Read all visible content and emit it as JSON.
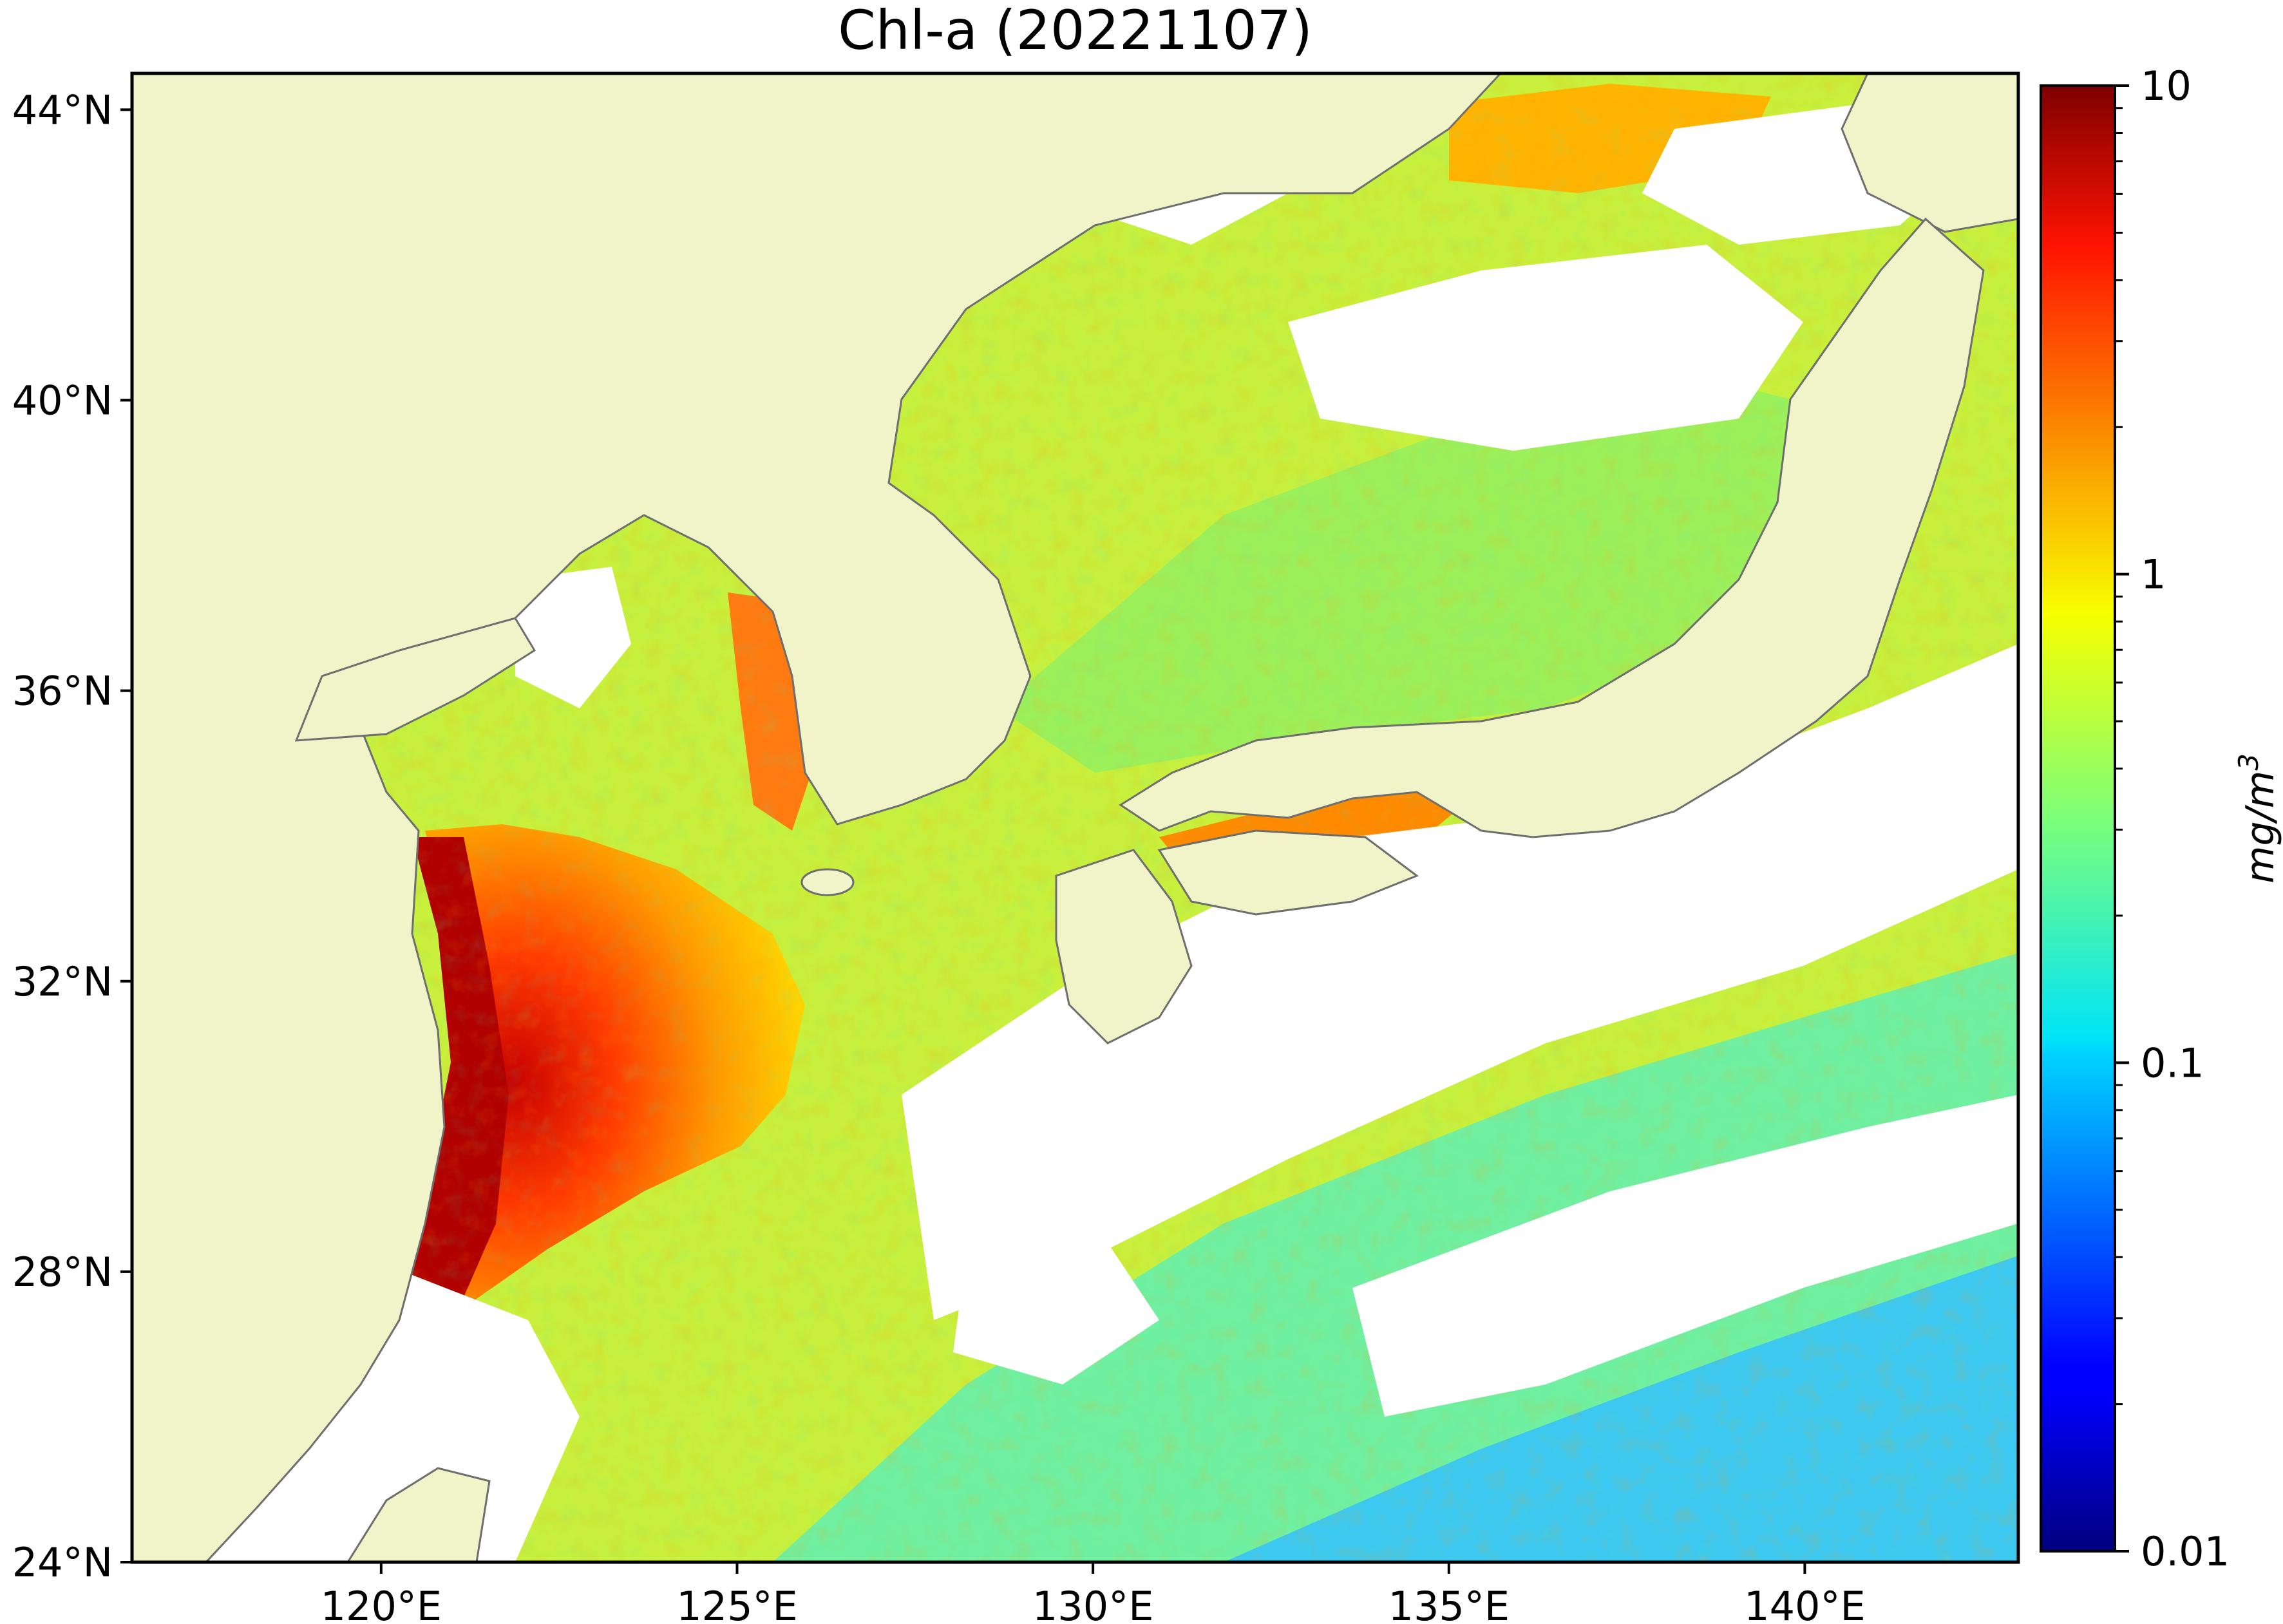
{
  "title": "Chl-a (20221107)",
  "map": {
    "lon_range": [
      116.5,
      143.0
    ],
    "lat_range": [
      24.0,
      44.5
    ],
    "x_ticks": [
      "120°E",
      "125°E",
      "130°E",
      "135°E",
      "140°E"
    ],
    "y_ticks": [
      "24°N",
      "28°N",
      "32°N",
      "36°N",
      "40°N",
      "44°N"
    ],
    "land_color": "#f0f4c8",
    "coast_color": "#6e6e6e",
    "cloud_color": "#ffffff"
  },
  "colorbar": {
    "label": "mg/m",
    "label_exponent": "3",
    "scale": "log",
    "range": [
      0.01,
      10
    ],
    "ticks": [
      "10",
      "1",
      "0.1",
      "0.01"
    ],
    "colormap": "jet"
  }
}
